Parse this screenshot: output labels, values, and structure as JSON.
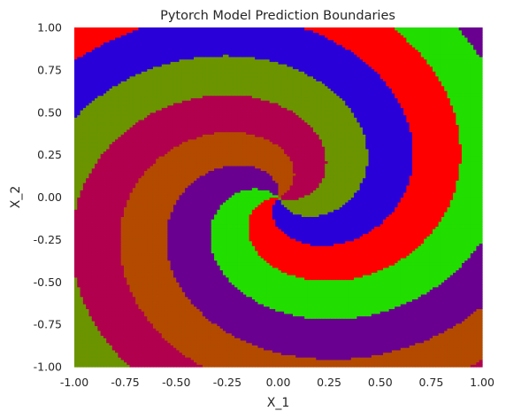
{
  "chart_data": {
    "type": "heatmap",
    "title": "Pytorch Model Prediction Boundaries",
    "xlabel": "X_1",
    "ylabel": "X_2",
    "xlim": [
      -1.0,
      1.0
    ],
    "ylim": [
      -1.0,
      1.0
    ],
    "xticks": [
      "-1.00",
      "-0.75",
      "-0.50",
      "-0.25",
      "0.00",
      "0.25",
      "0.50",
      "0.75",
      "1.00"
    ],
    "yticks": [
      "1.00",
      "0.75",
      "0.50",
      "0.25",
      "0.00",
      "-0.25",
      "-0.50",
      "-0.75",
      "-1.00"
    ],
    "grid": false,
    "classes": [
      {
        "class": 0,
        "color": "#6a0090"
      },
      {
        "class": 1,
        "color": "#b34a00"
      },
      {
        "class": 2,
        "color": "#2a00d8"
      },
      {
        "class": 3,
        "color": "#b0004e"
      },
      {
        "class": 4,
        "color": "#6b9400"
      },
      {
        "class": 5,
        "color": "#ff0000"
      },
      {
        "class": 6,
        "color": "#22dd00"
      }
    ]
  }
}
